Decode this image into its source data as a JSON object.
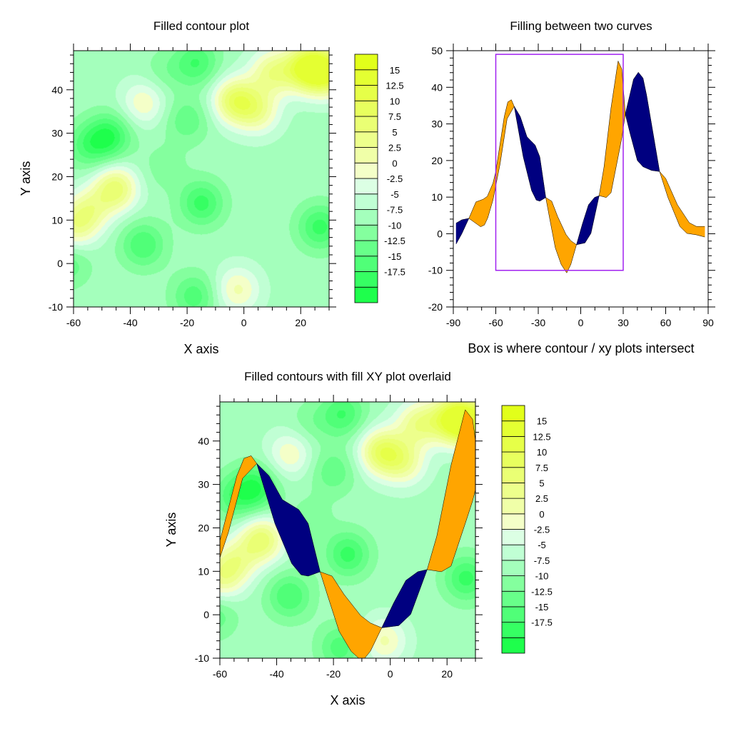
{
  "chart_data": [
    {
      "type": "heatmap",
      "subtype": "filled-contour",
      "title": "Filled contour plot",
      "xlabel": "X axis",
      "ylabel": "Y axis",
      "xlim": [
        -60,
        30
      ],
      "ylim": [
        -10,
        49
      ],
      "xticks": [
        -60,
        -40,
        -20,
        0,
        20
      ],
      "yticks": [
        -10,
        0,
        10,
        20,
        30,
        40
      ],
      "levels": [
        -17.5,
        -15,
        -12.5,
        -10,
        -7.5,
        -5,
        -2.5,
        0,
        2.5,
        5,
        7.5,
        10,
        12.5,
        15
      ],
      "level_labels": [
        "15",
        "12.5",
        "10",
        "7.5",
        "5",
        "2.5",
        "0",
        "-2.5",
        "-5",
        "-7.5",
        "-10",
        "-12.5",
        "-15",
        "-17.5"
      ],
      "colors": [
        "#1eff4c",
        "#36ff63",
        "#50ff78",
        "#68ff8a",
        "#84ff9e",
        "#a4ffbc",
        "#c0ffd4",
        "#dcffe4",
        "#f4ffc8",
        "#f0ffa8",
        "#edff8c",
        "#eaff74",
        "#e8ff5e",
        "#e6ff48",
        "#e4ff32",
        "#e2ff1a"
      ],
      "background_value": -6,
      "extrema": [
        {
          "x": 22.5,
          "y": 45,
          "z": 16
        },
        {
          "x": 30,
          "y": 44,
          "z": 12
        },
        {
          "x": 10,
          "y": 44,
          "z": 6
        },
        {
          "x": -3,
          "y": 37.5,
          "z": 10
        },
        {
          "x": 5,
          "y": 35,
          "z": 4
        },
        {
          "x": -35.3,
          "y": 37,
          "z": 2
        },
        {
          "x": -45.3,
          "y": 17.2,
          "z": 9
        },
        {
          "x": -55,
          "y": 12,
          "z": 4
        },
        {
          "x": -60,
          "y": 8,
          "z": 3
        },
        {
          "x": -2.2,
          "y": -6,
          "z": 3
        },
        {
          "x": -47.4,
          "y": 29.3,
          "z": -17
        },
        {
          "x": -55,
          "y": 27,
          "z": -13
        },
        {
          "x": -14.9,
          "y": 13.9,
          "z": -16
        },
        {
          "x": 26.7,
          "y": 8.4,
          "z": -16
        },
        {
          "x": -35.5,
          "y": 4.3,
          "z": -15
        },
        {
          "x": -17.5,
          "y": -7.5,
          "z": -14
        },
        {
          "x": -16.7,
          "y": 46.2,
          "z": -15
        },
        {
          "x": -20,
          "y": 33,
          "z": -12
        },
        {
          "x": -62,
          "y": 0,
          "z": -12
        },
        {
          "x": -28,
          "y": 22,
          "z": -9
        },
        {
          "x": -28,
          "y": 44,
          "z": -9
        }
      ]
    },
    {
      "type": "area",
      "subtype": "fill-between-two-curves",
      "title": "Filling between two curves",
      "xlabel": "Box is where contour / xy plots intersect",
      "xlim": [
        -90,
        90
      ],
      "ylim": [
        -20,
        50
      ],
      "xticks": [
        -90,
        -60,
        -30,
        0,
        30,
        60,
        90
      ],
      "yticks": [
        -20,
        -10,
        0,
        10,
        20,
        30,
        40,
        50
      ],
      "fill_above_color": "#ffa500",
      "fill_below_color": "#000080",
      "box": {
        "x": [
          -60,
          30
        ],
        "y": [
          -10,
          49
        ],
        "color": "#a020f0"
      },
      "series": [
        {
          "points": [
            [
              -88,
              -2.8
            ],
            [
              -84,
              0
            ],
            [
              -79,
              4.2
            ],
            [
              -74,
              8.7
            ],
            [
              -69,
              9.4
            ],
            [
              -66,
              10.2
            ],
            [
              -62,
              13.8
            ],
            [
              -60,
              17
            ],
            [
              -54,
              32
            ],
            [
              -51.5,
              36
            ],
            [
              -49,
              36.6
            ],
            [
              -47,
              34.8
            ],
            [
              -40.6,
              21
            ],
            [
              -34.7,
              11.8
            ],
            [
              -31.4,
              9.2
            ],
            [
              -28.9,
              8.9
            ],
            [
              -24.7,
              9.9
            ],
            [
              -20.5,
              8.9
            ],
            [
              -16.3,
              4.7
            ],
            [
              -10.4,
              -0.2
            ],
            [
              -7,
              -1.9
            ],
            [
              -3,
              -3
            ],
            [
              3,
              -2.5
            ],
            [
              7.2,
              0.1
            ],
            [
              13,
              10.4
            ],
            [
              16.4,
              18.1
            ],
            [
              21.4,
              34.4
            ],
            [
              26.4,
              47.2
            ],
            [
              29,
              45
            ],
            [
              31.5,
              32.7
            ],
            [
              34.8,
              27.5
            ],
            [
              40,
              20
            ],
            [
              44,
              18.3
            ],
            [
              50,
              17.3
            ],
            [
              55.7,
              17
            ],
            [
              60,
              15.1
            ],
            [
              68.3,
              7.9
            ],
            [
              76.7,
              3
            ],
            [
              81.7,
              2
            ],
            [
              87.6,
              2
            ]
          ]
        },
        {
          "points": [
            [
              -88,
              2.9
            ],
            [
              -84,
              3.8
            ],
            [
              -79,
              4.2
            ],
            [
              -70.7,
              1.9
            ],
            [
              -68,
              2.4
            ],
            [
              -65.7,
              4.3
            ],
            [
              -62,
              9.2
            ],
            [
              -57,
              19
            ],
            [
              -52,
              31.4
            ],
            [
              -47,
              34.8
            ],
            [
              -42.7,
              32
            ],
            [
              -38,
              26.5
            ],
            [
              -32.2,
              24.2
            ],
            [
              -28.9,
              21
            ],
            [
              -24.7,
              9.9
            ],
            [
              -22.2,
              4.7
            ],
            [
              -18,
              -3.8
            ],
            [
              -13.8,
              -8.4
            ],
            [
              -9.9,
              -10.7
            ],
            [
              -7,
              -8.4
            ],
            [
              -3,
              -3
            ],
            [
              1.2,
              2.7
            ],
            [
              5.5,
              7.9
            ],
            [
              9.7,
              9.9
            ],
            [
              13,
              10.4
            ],
            [
              18,
              9.9
            ],
            [
              21.4,
              11.2
            ],
            [
              26.4,
              21
            ],
            [
              29,
              26.2
            ],
            [
              31.5,
              32.7
            ],
            [
              37.3,
              42.2
            ],
            [
              40.7,
              44.1
            ],
            [
              44,
              42.5
            ],
            [
              46.5,
              37.9
            ],
            [
              55.7,
              17
            ],
            [
              61.6,
              9.9
            ],
            [
              70,
              2
            ],
            [
              75,
              0.1
            ],
            [
              81.7,
              -0.3
            ],
            [
              87.6,
              -0.9
            ]
          ]
        }
      ]
    },
    {
      "type": "heatmap",
      "subtype": "filled-contour-with-xy-overlay",
      "title": "Filled contours with fill XY plot overlaid",
      "xlabel": "X axis",
      "ylabel": "Y axis",
      "xlim": [
        -60,
        30
      ],
      "ylim": [
        -10,
        49
      ],
      "xticks": [
        -60,
        -40,
        -20,
        0,
        20
      ],
      "yticks": [
        -10,
        0,
        10,
        20,
        30,
        40
      ]
    }
  ]
}
